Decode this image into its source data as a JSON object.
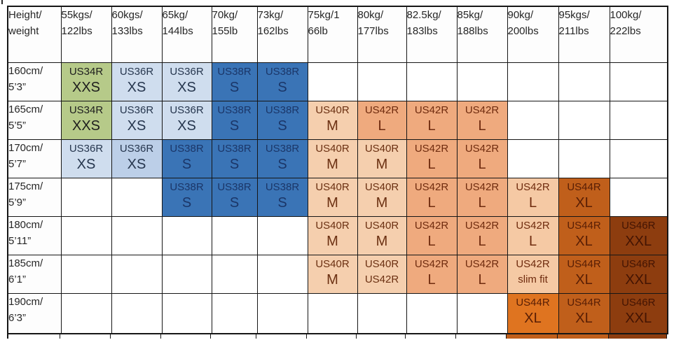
{
  "palette": {
    "xxs": {
      "bg": "#b6ca89",
      "fg": "#1d1d1d"
    },
    "xs": {
      "bg": "#cfddee",
      "fg": "#26364e"
    },
    "xs2": {
      "bg": "#bccfe8",
      "fg": "#26364e"
    },
    "s": {
      "bg": "#3a74b6",
      "fg": "#1b3668"
    },
    "m": {
      "bg": "#f5cfae",
      "fg": "#6b3012"
    },
    "l": {
      "bg": "#efaa7e",
      "fg": "#6f2b0e"
    },
    "l2": {
      "bg": "#f5c9a4",
      "fg": "#6f2b0e"
    },
    "xl": {
      "bg": "#c05f1b",
      "fg": "#581e05"
    },
    "xl2": {
      "bg": "#df7420",
      "fg": "#581e05"
    },
    "xxl": {
      "bg": "#8d3d0f",
      "fg": "#431403"
    },
    "empty": {
      "bg": "#ffffff",
      "fg": "#1a1a1a"
    }
  },
  "table": {
    "corner_header": [
      "Height/",
      "weight"
    ],
    "weight_headers": [
      [
        "55kgs/",
        "122lbs"
      ],
      [
        "60kgs/",
        "133lbs"
      ],
      [
        "65kg/",
        "144lbs"
      ],
      [
        "70kg/",
        "155lb"
      ],
      [
        "73kg/",
        "162lbs"
      ],
      [
        "75kg/1",
        "66lb"
      ],
      [
        "80kg/",
        "177lbs"
      ],
      [
        "82.5kg/",
        "183lbs"
      ],
      [
        "85kg/",
        "188lbs"
      ],
      [
        "90kg/",
        "200lbs"
      ],
      [
        "95kgs/",
        "211lbs"
      ],
      [
        "100kg/",
        "222lbs"
      ]
    ],
    "rows": [
      {
        "label": [
          "160cm/",
          "5’3”"
        ],
        "cells": [
          {
            "l1": "US34R",
            "l2": "XXS",
            "tone": "xxs"
          },
          {
            "l1": "US36R",
            "l2": "XS",
            "tone": "xs"
          },
          {
            "l1": "US36R",
            "l2": "XS",
            "tone": "xs"
          },
          {
            "l1": "US38R",
            "l2": "S",
            "tone": "s"
          },
          {
            "l1": "US38R",
            "l2": "S",
            "tone": "s"
          },
          null,
          null,
          null,
          null,
          null,
          null,
          null
        ]
      },
      {
        "label": [
          "165cm/",
          "5’5”"
        ],
        "cells": [
          {
            "l1": "US34R",
            "l2": "XXS",
            "tone": "xxs"
          },
          {
            "l1": "US36R",
            "l2": "XS",
            "tone": "xs"
          },
          {
            "l1": "US36R",
            "l2": "XS",
            "tone": "xs"
          },
          {
            "l1": "US38R",
            "l2": "S",
            "tone": "s"
          },
          {
            "l1": "US38R",
            "l2": "S",
            "tone": "s"
          },
          {
            "l1": "US40R",
            "l2": "M",
            "tone": "m"
          },
          {
            "l1": "US42R",
            "l2": "L",
            "tone": "l"
          },
          {
            "l1": "US42R",
            "l2": "L",
            "tone": "l"
          },
          {
            "l1": "US42R",
            "l2": "L",
            "tone": "l"
          },
          null,
          null,
          null
        ]
      },
      {
        "label": [
          "170cm/",
          "5’7”"
        ],
        "cells": [
          {
            "l1": "US36R",
            "l2": "XS",
            "tone": "xs"
          },
          {
            "l1": "US36R",
            "l2": "XS",
            "tone": "xs2"
          },
          {
            "l1": "US38R",
            "l2": "S",
            "tone": "s"
          },
          {
            "l1": "US38R",
            "l2": "S",
            "tone": "s"
          },
          {
            "l1": "US38R",
            "l2": "S",
            "tone": "s"
          },
          {
            "l1": "US40R",
            "l2": "M",
            "tone": "m"
          },
          {
            "l1": "US40R",
            "l2": "M",
            "tone": "m"
          },
          {
            "l1": "US42R",
            "l2": "L",
            "tone": "l"
          },
          {
            "l1": "US42R",
            "l2": "L",
            "tone": "l"
          },
          null,
          null,
          null
        ]
      },
      {
        "label": [
          "175cm/",
          "5’9”"
        ],
        "cells": [
          null,
          null,
          {
            "l1": "US38R",
            "l2": "S",
            "tone": "s"
          },
          {
            "l1": "US38R",
            "l2": "S",
            "tone": "s"
          },
          {
            "l1": "US38R",
            "l2": "S",
            "tone": "s"
          },
          {
            "l1": "US40R",
            "l2": "M",
            "tone": "m"
          },
          {
            "l1": "US40R",
            "l2": "M",
            "tone": "m"
          },
          {
            "l1": "US42R",
            "l2": "L",
            "tone": "l"
          },
          {
            "l1": "US42R",
            "l2": "L",
            "tone": "l"
          },
          {
            "l1": "US42R",
            "l2": "L",
            "tone": "l2"
          },
          {
            "l1": "US44R",
            "l2": "XL",
            "tone": "xl"
          },
          null
        ]
      },
      {
        "label": [
          "180cm/",
          "5’11”"
        ],
        "cells": [
          null,
          null,
          null,
          null,
          null,
          {
            "l1": "US40R",
            "l2": "M",
            "tone": "m"
          },
          {
            "l1": "US40R",
            "l2": "M",
            "tone": "m"
          },
          {
            "l1": "US42R",
            "l2": "L",
            "tone": "l"
          },
          {
            "l1": "US42R",
            "l2": "L",
            "tone": "l"
          },
          {
            "l1": "US42R",
            "l2": "L",
            "tone": "l2"
          },
          {
            "l1": "US44R",
            "l2": "XL",
            "tone": "xl"
          },
          {
            "l1": "US46R",
            "l2": "XXL",
            "tone": "xxl"
          }
        ]
      },
      {
        "label": [
          "185cm/",
          "6’1”"
        ],
        "cells": [
          null,
          null,
          null,
          null,
          null,
          {
            "l1": "US40R",
            "l2": "M",
            "tone": "m"
          },
          {
            "l1": "US40R",
            "l2": "US42R",
            "tone": "m",
            "small2": true
          },
          {
            "l1": "US42R",
            "l2": "L",
            "tone": "l"
          },
          {
            "l1": "US42R",
            "l2": "L",
            "tone": "l"
          },
          {
            "l1": "US42R",
            "l2": "slim fit",
            "tone": "l2",
            "small2": true
          },
          {
            "l1": "US44R",
            "l2": "XL",
            "tone": "xl"
          },
          {
            "l1": "US46R",
            "l2": "XXL",
            "tone": "xxl"
          }
        ]
      },
      {
        "label": [
          "190cm/",
          "6’3”"
        ],
        "cells": [
          null,
          null,
          null,
          null,
          null,
          null,
          null,
          null,
          null,
          {
            "l1": "US44R",
            "l2": "XL",
            "tone": "xl2"
          },
          {
            "l1": "US44R",
            "l2": "XL",
            "tone": "xl"
          },
          {
            "l1": "US46R",
            "l2": "XXL",
            "tone": "xxl"
          }
        ]
      }
    ]
  },
  "bottom_strip_tones": [
    "empty",
    "empty",
    "empty",
    "empty",
    "empty",
    "empty",
    "empty",
    "empty",
    "empty",
    "empty",
    "xl",
    "xl",
    "xxl"
  ]
}
